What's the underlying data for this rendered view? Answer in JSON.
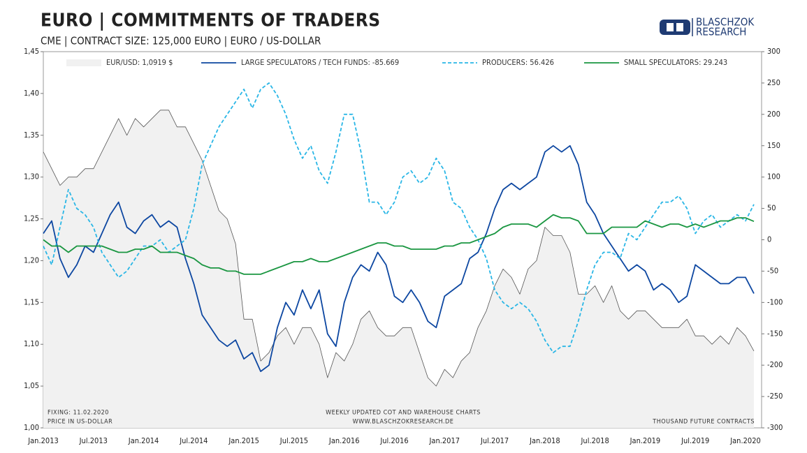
{
  "logo": {
    "line1": "BLASCHZOK",
    "line2": "RESEARCH"
  },
  "chart_data": {
    "type": "line",
    "title": "EURO | COMMITMENTS OF TRADERS",
    "subtitle": "CME | CONTRACT SIZE: 125,000 EURO | EURO / US-DOLLAR",
    "annotations": [
      "FIXING: 11.02.2020",
      "PRICE IN US-DOLLAR",
      "WEEKLY UPDATED COT AND WAREHOUSE CHARTS",
      "WWW.BLASCHZOKRESEARCH.DE",
      "THOUSAND FUTURE CONTRACTS"
    ],
    "categories": [
      "Jan.2013",
      null,
      null,
      null,
      null,
      null,
      "Jul.2013",
      null,
      null,
      null,
      null,
      null,
      "Jan.2014",
      null,
      null,
      null,
      null,
      null,
      "Jul.2014",
      null,
      null,
      null,
      null,
      null,
      "Jan.2015",
      null,
      null,
      null,
      null,
      null,
      "Jul.2015",
      null,
      null,
      null,
      null,
      null,
      "Jan.2016",
      null,
      null,
      null,
      null,
      null,
      "Jul.2016",
      null,
      null,
      null,
      null,
      null,
      "Jan.2017",
      null,
      null,
      null,
      null,
      null,
      "Jul.2017",
      null,
      null,
      null,
      null,
      null,
      "Jan.2018",
      null,
      null,
      null,
      null,
      null,
      "Jul.2018",
      null,
      null,
      null,
      null,
      null,
      "Jan.2019",
      null,
      null,
      null,
      null,
      null,
      "Jul.2019",
      null,
      null,
      null,
      null,
      null,
      "Jan.2020",
      null
    ],
    "ylim": [
      1.0,
      1.45
    ],
    "yticks": [
      {
        "value": 1.0,
        "label": "1,00"
      },
      {
        "value": 1.05,
        "label": "1,05"
      },
      {
        "value": 1.1,
        "label": "1,10"
      },
      {
        "value": 1.15,
        "label": "1,15"
      },
      {
        "value": 1.2,
        "label": "1,20"
      },
      {
        "value": 1.25,
        "label": "1,25"
      },
      {
        "value": 1.3,
        "label": "1,30"
      },
      {
        "value": 1.35,
        "label": "1,35"
      },
      {
        "value": 1.4,
        "label": "1,40"
      },
      {
        "value": 1.45,
        "label": "1,45"
      }
    ],
    "y2lim": [
      -300,
      300
    ],
    "y2ticks": [
      -300,
      -250,
      -200,
      -150,
      -100,
      -50,
      0,
      50,
      100,
      150,
      200,
      250,
      300
    ],
    "legend": "top",
    "series": [
      {
        "name": "EUR/USD: 1,0919 $",
        "color": "#555555",
        "fill": "#f1f1f1",
        "area": true,
        "values": [
          1.33,
          1.31,
          1.29,
          1.3,
          1.3,
          1.31,
          1.31,
          1.33,
          1.35,
          1.37,
          1.35,
          1.37,
          1.36,
          1.37,
          1.38,
          1.38,
          1.36,
          1.36,
          1.34,
          1.32,
          1.29,
          1.26,
          1.25,
          1.22,
          1.13,
          1.13,
          1.08,
          1.09,
          1.11,
          1.12,
          1.1,
          1.12,
          1.12,
          1.1,
          1.06,
          1.09,
          1.08,
          1.1,
          1.13,
          1.14,
          1.12,
          1.11,
          1.11,
          1.12,
          1.12,
          1.09,
          1.06,
          1.05,
          1.07,
          1.06,
          1.08,
          1.09,
          1.12,
          1.14,
          1.17,
          1.19,
          1.18,
          1.16,
          1.19,
          1.2,
          1.24,
          1.23,
          1.23,
          1.21,
          1.16,
          1.16,
          1.17,
          1.15,
          1.17,
          1.14,
          1.13,
          1.14,
          1.14,
          1.13,
          1.12,
          1.12,
          1.12,
          1.13,
          1.11,
          1.11,
          1.1,
          1.11,
          1.1,
          1.12,
          1.11,
          1.0919
        ]
      },
      {
        "name": "LARGE SPECULATORS / TECH FUNDS: -85.669",
        "color": "#0d47a1",
        "axis": "y2",
        "values": [
          10,
          30,
          -30,
          -60,
          -40,
          -10,
          -20,
          10,
          40,
          60,
          20,
          10,
          30,
          40,
          20,
          30,
          20,
          -30,
          -70,
          -120,
          -140,
          -160,
          -170,
          -160,
          -190,
          -180,
          -210,
          -200,
          -140,
          -100,
          -120,
          -80,
          -110,
          -80,
          -150,
          -170,
          -100,
          -60,
          -40,
          -50,
          -20,
          -40,
          -90,
          -100,
          -80,
          -100,
          -130,
          -140,
          -90,
          -80,
          -70,
          -30,
          -20,
          10,
          50,
          80,
          90,
          80,
          90,
          100,
          140,
          150,
          140,
          150,
          120,
          60,
          40,
          10,
          -10,
          -30,
          -50,
          -40,
          -50,
          -80,
          -70,
          -80,
          -100,
          -90,
          -40,
          -50,
          -60,
          -70,
          -70,
          -60,
          -60,
          -85.669
        ]
      },
      {
        "name": "PRODUCERS: 56.426",
        "color": "#29b6e6",
        "axis": "y2",
        "dashed": true,
        "values": [
          -10,
          -40,
          20,
          80,
          50,
          40,
          20,
          -20,
          -40,
          -60,
          -50,
          -30,
          -10,
          -10,
          0,
          -20,
          -10,
          0,
          50,
          120,
          150,
          180,
          200,
          220,
          240,
          210,
          240,
          250,
          230,
          200,
          160,
          130,
          150,
          110,
          90,
          140,
          200,
          200,
          140,
          60,
          60,
          40,
          60,
          100,
          110,
          90,
          100,
          130,
          110,
          60,
          50,
          20,
          0,
          -30,
          -80,
          -100,
          -110,
          -100,
          -110,
          -130,
          -160,
          -180,
          -170,
          -170,
          -130,
          -80,
          -40,
          -20,
          -20,
          -30,
          10,
          0,
          20,
          40,
          60,
          60,
          70,
          50,
          10,
          30,
          40,
          20,
          30,
          40,
          30,
          56.426
        ]
      },
      {
        "name": "SMALL SPECULATORS: 29.243",
        "color": "#1a9641",
        "axis": "y2",
        "values": [
          0,
          -10,
          -10,
          -20,
          -10,
          -10,
          -10,
          -10,
          -15,
          -20,
          -20,
          -15,
          -15,
          -10,
          -20,
          -20,
          -20,
          -25,
          -30,
          -40,
          -45,
          -45,
          -50,
          -50,
          -55,
          -55,
          -55,
          -50,
          -45,
          -40,
          -35,
          -35,
          -30,
          -35,
          -35,
          -30,
          -25,
          -20,
          -15,
          -10,
          -5,
          -5,
          -10,
          -10,
          -15,
          -15,
          -15,
          -15,
          -10,
          -10,
          -5,
          -5,
          0,
          5,
          10,
          20,
          25,
          25,
          25,
          20,
          30,
          40,
          35,
          35,
          30,
          10,
          10,
          10,
          20,
          20,
          20,
          20,
          30,
          25,
          20,
          25,
          25,
          20,
          25,
          20,
          25,
          30,
          30,
          35,
          35,
          29.243
        ]
      }
    ]
  }
}
